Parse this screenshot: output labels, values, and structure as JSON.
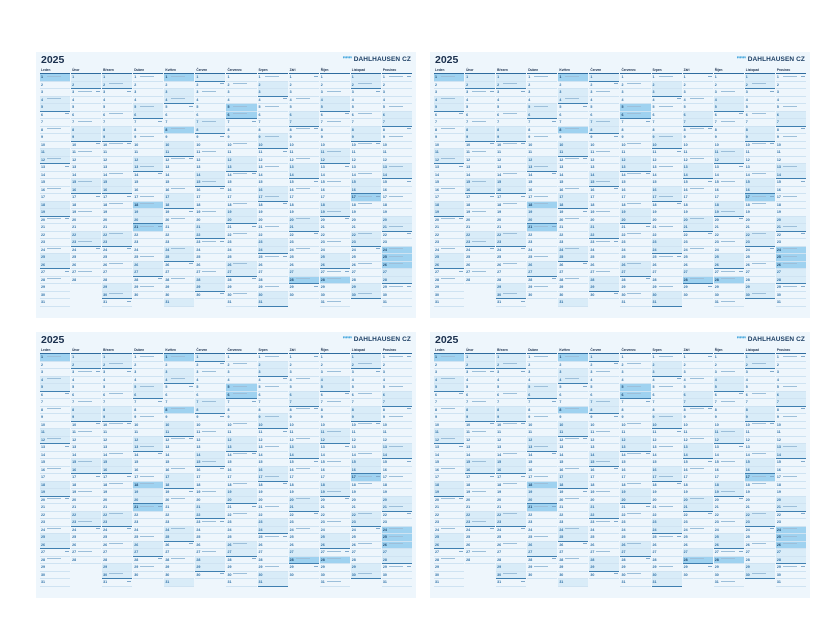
{
  "calendar": {
    "year": "2025",
    "brand": "DAHLHAUSEN CZ",
    "brand_mark": "❞❞❞",
    "accent_color": "#2b9bd8",
    "weekend_color": "#d9ecf8",
    "holiday_color": "#9fd2f0",
    "months": [
      {
        "name": "Leden",
        "days": 31,
        "first_weekday": 2,
        "holidays": [
          1
        ]
      },
      {
        "name": "Únor",
        "days": 28,
        "first_weekday": 5,
        "holidays": []
      },
      {
        "name": "Březen",
        "days": 31,
        "first_weekday": 5,
        "holidays": []
      },
      {
        "name": "Duben",
        "days": 30,
        "first_weekday": 1,
        "holidays": [
          18,
          21
        ]
      },
      {
        "name": "Květen",
        "days": 31,
        "first_weekday": 3,
        "holidays": [
          1,
          8
        ]
      },
      {
        "name": "Červen",
        "days": 30,
        "first_weekday": 6,
        "holidays": []
      },
      {
        "name": "Červenec",
        "days": 31,
        "first_weekday": 1,
        "holidays": [
          5,
          6
        ]
      },
      {
        "name": "Srpen",
        "days": 31,
        "first_weekday": 4,
        "holidays": []
      },
      {
        "name": "Září",
        "days": 30,
        "first_weekday": 0,
        "holidays": [
          28
        ]
      },
      {
        "name": "Říjen",
        "days": 31,
        "first_weekday": 2,
        "holidays": [
          28
        ]
      },
      {
        "name": "Listopad",
        "days": 30,
        "first_weekday": 5,
        "holidays": [
          17
        ]
      },
      {
        "name": "Prosinec",
        "days": 31,
        "first_weekday": 0,
        "holidays": [
          24,
          25,
          26
        ]
      }
    ]
  }
}
